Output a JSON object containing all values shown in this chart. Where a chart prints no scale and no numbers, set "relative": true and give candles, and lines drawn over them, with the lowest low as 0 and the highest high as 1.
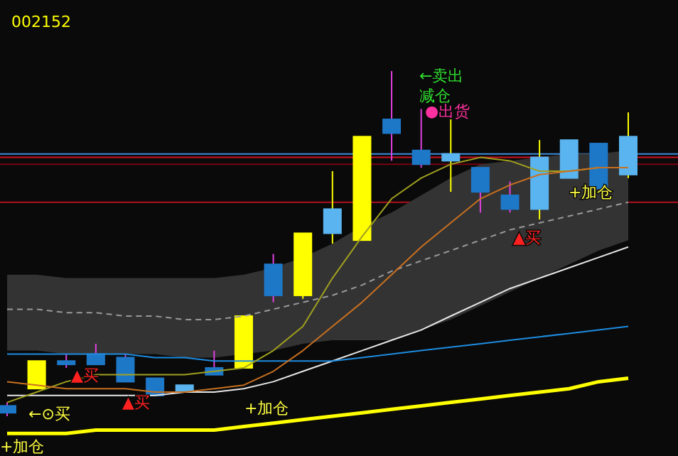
{
  "chart_data": {
    "type": "candlestick",
    "title": "002152",
    "relative": true,
    "categories": [
      null,
      null,
      null,
      null,
      null,
      null,
      null,
      null,
      null,
      null,
      null,
      null,
      null,
      null,
      null,
      null,
      null,
      null,
      null,
      null,
      null,
      null
    ],
    "ohlc": [
      [
        0.03,
        0.04,
        0,
        0.01
      ],
      [
        0.08,
        0.16,
        0.08,
        0.16
      ],
      [
        0.16,
        0.18,
        0.14,
        0.15
      ],
      [
        0.18,
        0.21,
        0.15,
        0.15
      ],
      [
        0.17,
        0.18,
        0.1,
        0.1
      ],
      [
        0.11,
        0.11,
        0.06,
        0.06
      ],
      [
        0.07,
        0.09,
        0.07,
        0.09
      ],
      [
        0.14,
        0.19,
        0.12,
        0.12
      ],
      [
        0.14,
        0.29,
        0.14,
        0.29
      ],
      [
        0.44,
        0.47,
        0.33,
        0.35
      ],
      [
        0.35,
        0.53,
        0.34,
        0.53
      ],
      [
        0.53,
        0.71,
        0.5,
        0.6
      ],
      [
        0.51,
        0.81,
        0.51,
        0.81
      ],
      [
        0.86,
        1,
        0.74,
        0.82
      ],
      [
        0.77,
        0.89,
        0.72,
        0.73
      ],
      [
        0.74,
        0.86,
        0.65,
        0.76
      ],
      [
        0.72,
        0.72,
        0.59,
        0.65
      ],
      [
        0.64,
        0.68,
        0.59,
        0.6
      ],
      [
        0.6,
        0.8,
        0.57,
        0.75
      ],
      [
        0.69,
        0.8,
        0.69,
        0.8
      ],
      [
        0.79,
        0.79,
        0.66,
        0.66
      ],
      [
        0.7,
        0.88,
        0.69,
        0.81
      ]
    ],
    "colors": [
      "#1e78c8",
      "#ffff00",
      "#1e78c8",
      "#1e78c8",
      "#1e78c8",
      "#1e78c8",
      "#5ab4f0",
      "#1e78c8",
      "#ffff00",
      "#1e78c8",
      "#ffff00",
      "#5ab4f0",
      "#ffff00",
      "#1e78c8",
      "#1e78c8",
      "#5ab4f0",
      "#1e78c8",
      "#1e78c8",
      "#5ab4f0",
      "#5ab4f0",
      "#1e78c8",
      "#5ab4f0"
    ],
    "series": [
      {
        "type": "line",
        "color": "#9a9a9a",
        "line_style": "dashed",
        "values": [
          0.31,
          0.31,
          0.3,
          0.3,
          0.29,
          0.29,
          0.28,
          0.28,
          0.29,
          0.31,
          0.33,
          0.35,
          0.38,
          0.42,
          0.45,
          0.48,
          0.51,
          0.54,
          0.56,
          0.58,
          0.6,
          0.62
        ],
        "upper": [
          0.41,
          0.41,
          0.4,
          0.4,
          0.4,
          0.4,
          0.4,
          0.4,
          0.41,
          0.43,
          0.46,
          0.5,
          0.55,
          0.59,
          0.64,
          0.69,
          0.73,
          0.74,
          0.75,
          0.76,
          0.76,
          0.77
        ],
        "lower": [
          0.19,
          0.19,
          0.18,
          0.18,
          0.18,
          0.18,
          0.17,
          0.17,
          0.18,
          0.19,
          0.21,
          0.22,
          0.22,
          0.22,
          0.25,
          0.28,
          0.32,
          0.36,
          0.4,
          0.44,
          0.48,
          0.51
        ]
      },
      {
        "type": "line",
        "color": "#e8e8e8",
        "values": [
          0.06,
          0.06,
          0.06,
          0.06,
          0.06,
          0.06,
          0.07,
          0.07,
          0.08,
          0.1,
          0.13,
          0.16,
          0.19,
          0.22,
          0.25,
          0.29,
          0.33,
          0.37,
          0.4,
          0.43,
          0.46,
          0.49
        ]
      },
      {
        "type": "line",
        "color": "#1e8ce0",
        "values": [
          0.18,
          0.18,
          0.18,
          0.18,
          0.18,
          0.17,
          0.17,
          0.16,
          0.16,
          0.16,
          0.16,
          0.16,
          0.17,
          0.18,
          0.19,
          0.2,
          0.21,
          0.22,
          0.23,
          0.24,
          0.25,
          0.26
        ]
      },
      {
        "type": "line",
        "color": "#a0a020",
        "values": [
          0.04,
          0.07,
          0.1,
          0.12,
          0.12,
          0.12,
          0.12,
          0.13,
          0.14,
          0.19,
          0.26,
          0.4,
          0.52,
          0.63,
          0.69,
          0.73,
          0.75,
          0.74,
          0.71,
          0.71,
          0.72,
          0.72
        ]
      },
      {
        "type": "line",
        "color": "#c87020",
        "values": [
          0.1,
          0.09,
          0.08,
          0.08,
          0.08,
          0.07,
          0.07,
          0.08,
          0.09,
          0.13,
          0.19,
          0.26,
          0.33,
          0.41,
          0.49,
          0.56,
          0.63,
          0.67,
          0.7,
          0.71,
          0.72,
          0.72
        ]
      },
      {
        "type": "line",
        "color": "#ffff00",
        "values": [
          -0.05,
          -0.05,
          -0.05,
          -0.04,
          -0.04,
          -0.04,
          -0.04,
          -0.04,
          -0.03,
          -0.02,
          -0.01,
          0,
          0.01,
          0.02,
          0.03,
          0.04,
          0.05,
          0.06,
          0.07,
          0.08,
          0.1,
          0.11
        ]
      }
    ],
    "ref_lines": [
      {
        "axis": "y",
        "value": 0.76,
        "color": "#3c8cdc"
      },
      {
        "axis": "y",
        "value": 0.75,
        "color": "#d01020"
      },
      {
        "axis": "y",
        "value": 0.73,
        "color": "#7a0010"
      },
      {
        "axis": "y",
        "value": 0.62,
        "color": "#b01020"
      }
    ],
    "annotations": [
      "←卖出",
      "减仓",
      "●出货",
      "+加仓",
      "←⊙买",
      "▲买",
      "▲买",
      "+加仓",
      "▲买",
      "+加仓"
    ]
  }
}
